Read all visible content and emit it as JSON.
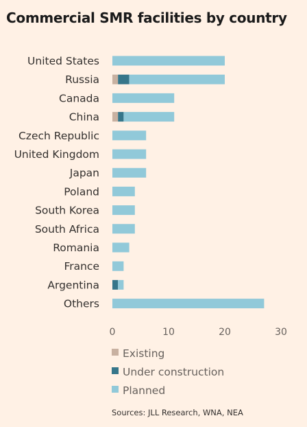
{
  "chart_data": {
    "type": "bar",
    "orientation": "horizontal",
    "stacked": true,
    "title": "Commercial SMR facilities by country",
    "categories": [
      "United States",
      "Russia",
      "Canada",
      "China",
      "Czech Republic",
      "United Kingdom",
      "Japan",
      "Poland",
      "South Korea",
      "South Africa",
      "Romania",
      "France",
      "Argentina",
      "Others"
    ],
    "series": [
      {
        "name": "Existing",
        "color": "#c8b1a1",
        "values": [
          0,
          1,
          0,
          1,
          0,
          0,
          0,
          0,
          0,
          0,
          0,
          0,
          0,
          0
        ]
      },
      {
        "name": "Under construction",
        "color": "#36768a",
        "values": [
          0,
          2,
          0,
          1,
          0,
          0,
          0,
          0,
          0,
          0,
          0,
          0,
          1,
          0
        ]
      },
      {
        "name": "Planned",
        "color": "#91c9d9",
        "values": [
          20,
          17,
          11,
          9,
          6,
          6,
          6,
          4,
          4,
          4,
          3,
          2,
          1,
          27
        ]
      }
    ],
    "xlim": [
      0,
      30
    ],
    "xticks": [
      0,
      10,
      20,
      30
    ],
    "grid": false,
    "legend": "bottom-left",
    "source": "Sources: JLL Research, WNA, NEA"
  }
}
